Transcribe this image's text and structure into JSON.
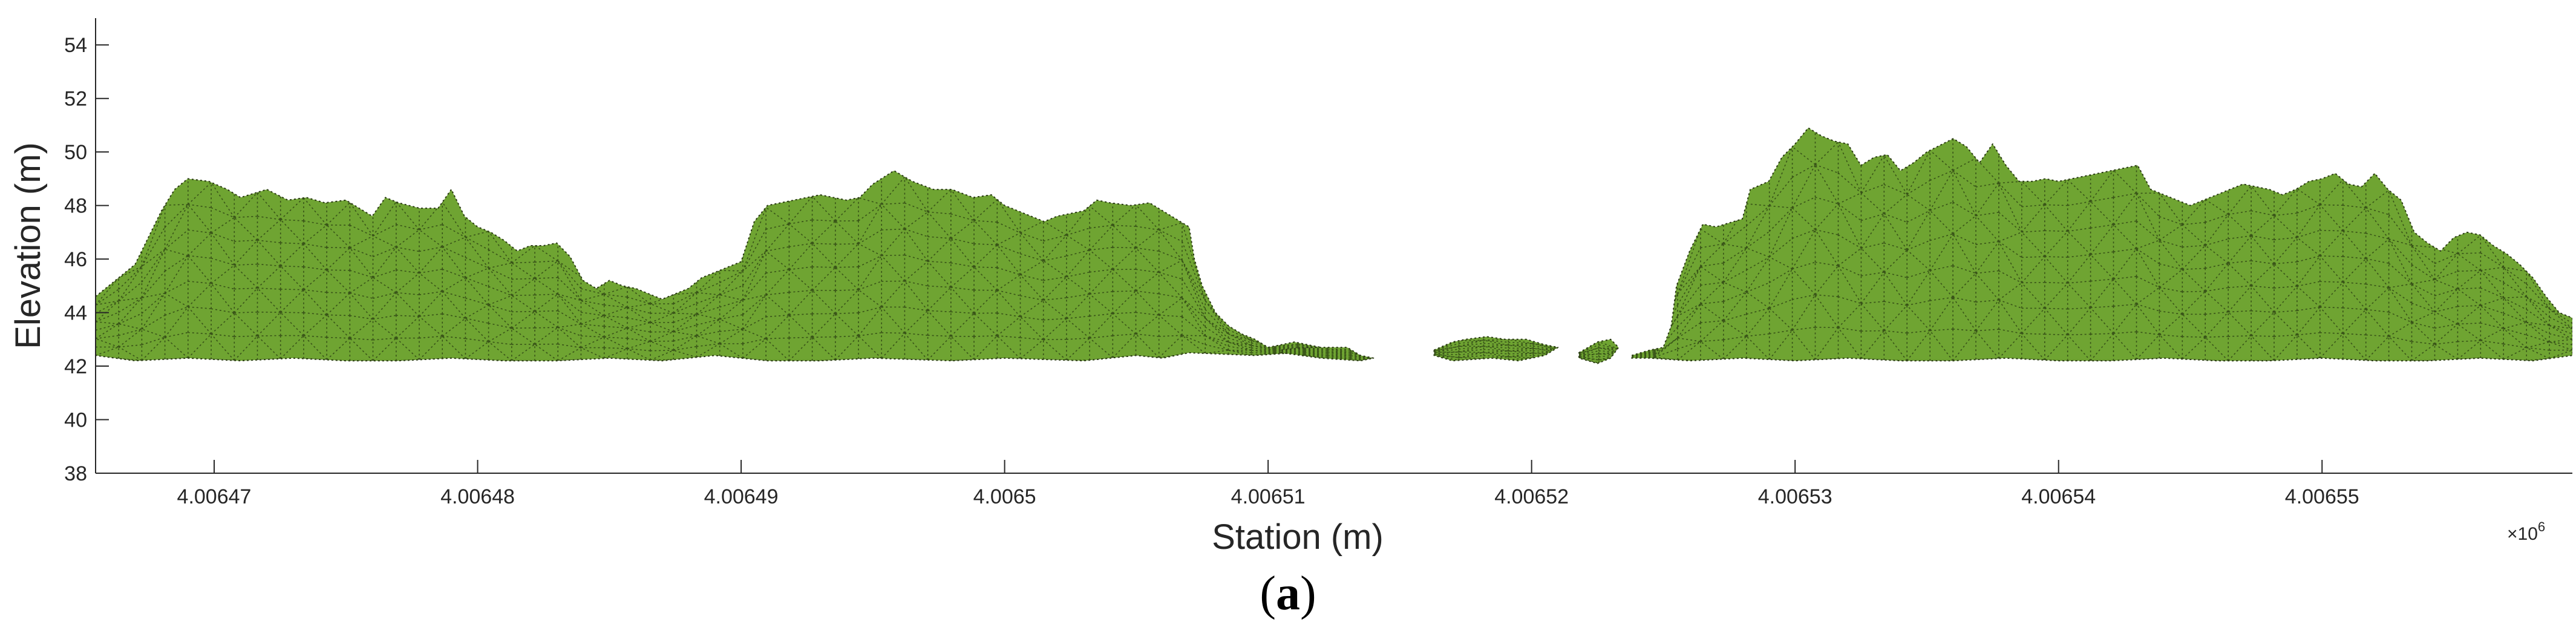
{
  "chart_data": {
    "type": "area",
    "xlabel": "Station (m)",
    "ylabel": "Elevation (m)",
    "x_exponent_label": "×10",
    "x_exponent_power": "6",
    "x_scale": 1000000,
    "xlim": [
      4.0064655,
      4.0065595
    ],
    "ylim": [
      38,
      55
    ],
    "grid": false,
    "color": "#6fa432",
    "edge_color": "#2a3a14",
    "x_ticks": [
      4.00647,
      4.00648,
      4.00649,
      4.0065,
      4.00651,
      4.00652,
      4.00653,
      4.00654,
      4.00655
    ],
    "x_tick_labels": [
      "4.00647",
      "4.00648",
      "4.00649",
      "4.0065",
      "4.00651",
      "4.00652",
      "4.00653",
      "4.00654",
      "4.00655"
    ],
    "y_ticks": [
      38,
      40,
      42,
      44,
      46,
      48,
      50,
      52,
      54
    ],
    "y_tick_labels": [
      "38",
      "40",
      "42",
      "44",
      "46",
      "48",
      "50",
      "52",
      "54"
    ],
    "segments": [
      {
        "top": [
          [
            4.0064655,
            44.6
          ],
          [
            4.006466,
            45.0
          ],
          [
            4.0064665,
            45.4
          ],
          [
            4.006467,
            45.8
          ],
          [
            4.0064675,
            46.8
          ],
          [
            4.006468,
            47.8
          ],
          [
            4.0064685,
            48.6
          ],
          [
            4.006469,
            49.0
          ],
          [
            4.0064698,
            48.9
          ],
          [
            4.0064705,
            48.6
          ],
          [
            4.006471,
            48.3
          ],
          [
            4.006472,
            48.6
          ],
          [
            4.0064728,
            48.2
          ],
          [
            4.0064735,
            48.3
          ],
          [
            4.0064742,
            48.1
          ],
          [
            4.006475,
            48.2
          ],
          [
            4.006476,
            47.6
          ],
          [
            4.0064765,
            48.3
          ],
          [
            4.006477,
            48.1
          ],
          [
            4.0064778,
            47.9
          ],
          [
            4.0064785,
            47.9
          ],
          [
            4.006479,
            48.6
          ],
          [
            4.0064795,
            47.6
          ],
          [
            4.00648,
            47.2
          ],
          [
            4.0064805,
            47.0
          ],
          [
            4.006481,
            46.7
          ],
          [
            4.0064815,
            46.3
          ],
          [
            4.006482,
            46.5
          ],
          [
            4.0064825,
            46.5
          ],
          [
            4.006483,
            46.6
          ],
          [
            4.0064835,
            46.1
          ],
          [
            4.006484,
            45.2
          ],
          [
            4.0064845,
            44.9
          ],
          [
            4.006485,
            45.2
          ],
          [
            4.0064855,
            45.0
          ],
          [
            4.006486,
            44.9
          ],
          [
            4.006487,
            44.5
          ],
          [
            4.0064875,
            44.7
          ],
          [
            4.006488,
            44.9
          ],
          [
            4.0064885,
            45.3
          ],
          [
            4.006489,
            45.5
          ],
          [
            4.00649,
            45.9
          ],
          [
            4.0064905,
            47.4
          ],
          [
            4.006491,
            48.0
          ],
          [
            4.006492,
            48.2
          ],
          [
            4.006493,
            48.4
          ],
          [
            4.006494,
            48.2
          ],
          [
            4.0064945,
            48.3
          ],
          [
            4.006495,
            48.8
          ],
          [
            4.0064958,
            49.3
          ],
          [
            4.0064965,
            48.9
          ],
          [
            4.0064973,
            48.6
          ],
          [
            4.006498,
            48.6
          ],
          [
            4.0064988,
            48.3
          ],
          [
            4.0064995,
            48.4
          ],
          [
            4.0065,
            48.0
          ],
          [
            4.006501,
            47.6
          ],
          [
            4.0065015,
            47.4
          ],
          [
            4.006502,
            47.6
          ],
          [
            4.006503,
            47.8
          ],
          [
            4.0065035,
            48.2
          ],
          [
            4.006504,
            48.1
          ],
          [
            4.0065048,
            48.0
          ],
          [
            4.0065055,
            48.1
          ],
          [
            4.006506,
            47.8
          ],
          [
            4.0065065,
            47.5
          ],
          [
            4.006507,
            47.2
          ],
          [
            4.0065072,
            46.0
          ],
          [
            4.0065075,
            45.0
          ],
          [
            4.006508,
            44.0
          ],
          [
            4.0065085,
            43.5
          ],
          [
            4.006509,
            43.2
          ],
          [
            4.0065095,
            43.0
          ],
          [
            4.00651,
            42.7
          ],
          [
            4.0065105,
            42.8
          ],
          [
            4.006511,
            42.9
          ],
          [
            4.0065115,
            42.8
          ],
          [
            4.006512,
            42.7
          ]
        ],
        "bottom": [
          [
            4.0065115,
            42.4
          ],
          [
            4.006511,
            42.5
          ],
          [
            4.0065095,
            42.4
          ],
          [
            4.006507,
            42.5
          ],
          [
            4.006506,
            42.3
          ],
          [
            4.006505,
            42.4
          ],
          [
            4.006503,
            42.2
          ],
          [
            4.0065,
            42.3
          ],
          [
            4.006498,
            42.2
          ],
          [
            4.006495,
            42.3
          ],
          [
            4.006493,
            42.2
          ],
          [
            4.006491,
            42.2
          ],
          [
            4.006489,
            42.4
          ],
          [
            4.006487,
            42.2
          ],
          [
            4.006485,
            42.3
          ],
          [
            4.006483,
            42.2
          ],
          [
            4.006481,
            42.2
          ],
          [
            4.006479,
            42.3
          ],
          [
            4.006477,
            42.2
          ],
          [
            4.006475,
            42.2
          ],
          [
            4.006473,
            42.3
          ],
          [
            4.006471,
            42.2
          ],
          [
            4.006469,
            42.3
          ],
          [
            4.006467,
            42.2
          ],
          [
            4.0064655,
            42.4
          ]
        ]
      },
      {
        "top": [
          [
            4.0065105,
            42.6
          ],
          [
            4.0065115,
            42.7
          ],
          [
            4.006513,
            42.7
          ],
          [
            4.0065135,
            42.4
          ],
          [
            4.006514,
            42.3
          ]
        ],
        "bottom": [
          [
            4.0065135,
            42.2
          ],
          [
            4.006512,
            42.3
          ],
          [
            4.0065105,
            42.5
          ]
        ]
      },
      {
        "top": [
          [
            4.0065163,
            42.6
          ],
          [
            4.006517,
            42.9
          ],
          [
            4.0065175,
            43.0
          ],
          [
            4.0065183,
            43.1
          ],
          [
            4.006519,
            43.0
          ],
          [
            4.0065198,
            43.0
          ],
          [
            4.0065205,
            42.8
          ],
          [
            4.006521,
            42.7
          ]
        ],
        "bottom": [
          [
            4.0065205,
            42.4
          ],
          [
            4.0065195,
            42.2
          ],
          [
            4.0065185,
            42.3
          ],
          [
            4.006517,
            42.2
          ],
          [
            4.0065163,
            42.4
          ]
        ]
      },
      {
        "top": [
          [
            4.0065218,
            42.5
          ],
          [
            4.0065225,
            42.9
          ],
          [
            4.006523,
            43.0
          ],
          [
            4.0065233,
            42.7
          ]
        ],
        "bottom": [
          [
            4.006523,
            42.3
          ],
          [
            4.0065225,
            42.1
          ],
          [
            4.0065218,
            42.3
          ]
        ]
      },
      {
        "top": [
          [
            4.0065238,
            42.4
          ],
          [
            4.0065245,
            42.6
          ],
          [
            4.006525,
            42.7
          ],
          [
            4.0065253,
            43.5
          ],
          [
            4.0065255,
            45.0
          ],
          [
            4.006526,
            46.3
          ],
          [
            4.0065265,
            47.3
          ],
          [
            4.006527,
            47.2
          ],
          [
            4.006528,
            47.5
          ],
          [
            4.0065283,
            48.6
          ],
          [
            4.006529,
            48.9
          ],
          [
            4.0065295,
            49.8
          ],
          [
            4.00653,
            50.3
          ],
          [
            4.0065305,
            50.9
          ],
          [
            4.006531,
            50.6
          ],
          [
            4.0065315,
            50.4
          ],
          [
            4.006532,
            50.3
          ],
          [
            4.0065325,
            49.5
          ],
          [
            4.006533,
            49.8
          ],
          [
            4.0065335,
            49.9
          ],
          [
            4.006534,
            49.3
          ],
          [
            4.0065345,
            49.6
          ],
          [
            4.006535,
            50.0
          ],
          [
            4.006536,
            50.5
          ],
          [
            4.0065365,
            50.2
          ],
          [
            4.006537,
            49.6
          ],
          [
            4.0065375,
            50.3
          ],
          [
            4.006538,
            49.5
          ],
          [
            4.0065385,
            48.9
          ],
          [
            4.006539,
            48.9
          ],
          [
            4.0065395,
            49.0
          ],
          [
            4.00654,
            48.9
          ],
          [
            4.006541,
            49.1
          ],
          [
            4.006542,
            49.3
          ],
          [
            4.006543,
            49.5
          ],
          [
            4.0065435,
            48.6
          ],
          [
            4.006544,
            48.4
          ],
          [
            4.006545,
            48.0
          ],
          [
            4.006546,
            48.4
          ],
          [
            4.006547,
            48.8
          ],
          [
            4.006548,
            48.6
          ],
          [
            4.0065485,
            48.4
          ],
          [
            4.006549,
            48.6
          ],
          [
            4.0065495,
            48.9
          ],
          [
            4.00655,
            49.0
          ],
          [
            4.0065505,
            49.2
          ],
          [
            4.006551,
            48.8
          ],
          [
            4.0065515,
            48.7
          ],
          [
            4.006552,
            49.2
          ],
          [
            4.0065525,
            48.6
          ],
          [
            4.006553,
            48.2
          ],
          [
            4.0065535,
            47.0
          ],
          [
            4.006554,
            46.6
          ],
          [
            4.0065545,
            46.3
          ],
          [
            4.006555,
            46.8
          ],
          [
            4.0065555,
            47.0
          ],
          [
            4.006556,
            46.9
          ],
          [
            4.0065565,
            46.5
          ],
          [
            4.006557,
            46.2
          ],
          [
            4.0065575,
            45.8
          ],
          [
            4.006558,
            45.3
          ],
          [
            4.0065585,
            44.6
          ],
          [
            4.006559,
            44.0
          ],
          [
            4.0065595,
            43.8
          ]
        ],
        "bottom": [
          [
            4.0065595,
            42.4
          ],
          [
            4.006558,
            42.2
          ],
          [
            4.006556,
            42.3
          ],
          [
            4.006554,
            42.2
          ],
          [
            4.006552,
            42.2
          ],
          [
            4.00655,
            42.3
          ],
          [
            4.006548,
            42.2
          ],
          [
            4.006546,
            42.2
          ],
          [
            4.006544,
            42.3
          ],
          [
            4.006542,
            42.2
          ],
          [
            4.00654,
            42.2
          ],
          [
            4.006538,
            42.3
          ],
          [
            4.006536,
            42.2
          ],
          [
            4.006534,
            42.2
          ],
          [
            4.006532,
            42.3
          ],
          [
            4.00653,
            42.2
          ],
          [
            4.006528,
            42.3
          ],
          [
            4.006526,
            42.2
          ],
          [
            4.0065245,
            42.3
          ],
          [
            4.0065238,
            42.3
          ]
        ]
      }
    ]
  },
  "caption": {
    "open": "(",
    "letter": "a",
    "close": ")"
  }
}
